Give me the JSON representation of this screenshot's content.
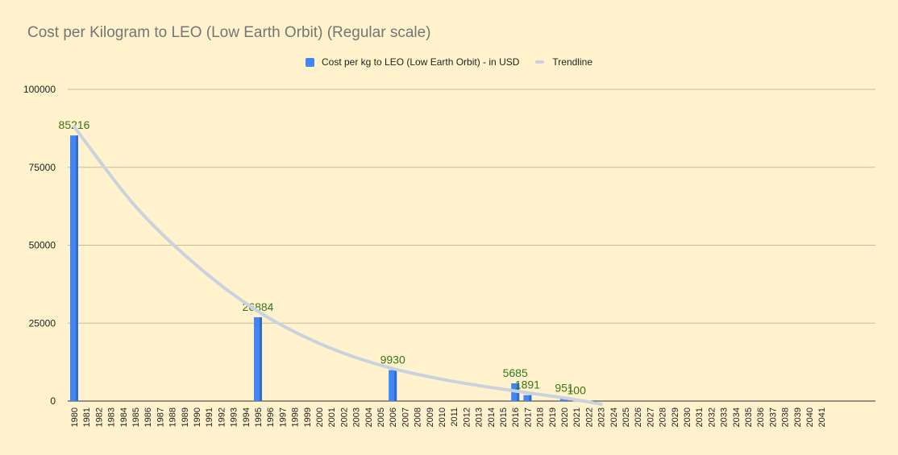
{
  "chart_data": {
    "type": "bar",
    "title": "Cost per Kilogram to LEO (Low Earth Orbit) (Regular scale)",
    "xlabel": "",
    "ylabel": "",
    "ylim": [
      0,
      100000
    ],
    "yticks": [
      0,
      25000,
      50000,
      75000,
      100000
    ],
    "categories": [
      "1980",
      "1981",
      "1982",
      "1983",
      "1984",
      "1985",
      "1986",
      "1987",
      "1988",
      "1989",
      "1990",
      "1991",
      "1992",
      "1993",
      "1994",
      "1995",
      "1996",
      "1997",
      "1998",
      "1999",
      "2000",
      "2001",
      "2002",
      "2003",
      "2004",
      "2005",
      "2006",
      "2007",
      "2008",
      "2009",
      "2010",
      "2011",
      "2012",
      "2013",
      "2014",
      "2015",
      "2016",
      "2017",
      "2018",
      "2019",
      "2020",
      "2021",
      "2022",
      "2023",
      "2024",
      "2025",
      "2026",
      "2027",
      "2028",
      "2029",
      "2030",
      "2031",
      "2032",
      "2033",
      "2034",
      "2035",
      "2036",
      "2037",
      "2038",
      "2039",
      "2040",
      "2041"
    ],
    "series": [
      {
        "name": "Cost per kg to LEO (Low Earth Orbit) - in USD",
        "color": "#4285F4",
        "points": [
          {
            "x": "1980",
            "y": 85216
          },
          {
            "x": "1995",
            "y": 26884
          },
          {
            "x": "2006",
            "y": 9930
          },
          {
            "x": "2016",
            "y": 5685
          },
          {
            "x": "2017",
            "y": 1891
          },
          {
            "x": "2020",
            "y": 951
          },
          {
            "x": "2021",
            "y": 100
          }
        ]
      }
    ],
    "trendline": {
      "name": "Trendline",
      "color": "#C9D3DF",
      "points": [
        {
          "x": "1980",
          "y": 88000
        },
        {
          "x": "1985",
          "y": 62500
        },
        {
          "x": "1990",
          "y": 43500
        },
        {
          "x": "1995",
          "y": 28800
        },
        {
          "x": "2000",
          "y": 18500
        },
        {
          "x": "2005",
          "y": 11500
        },
        {
          "x": "2010",
          "y": 7000
        },
        {
          "x": "2015",
          "y": 3800
        },
        {
          "x": "2020",
          "y": 1000
        },
        {
          "x": "2023",
          "y": -1000
        }
      ]
    },
    "data_label_color": "#38761D",
    "legend_position": "top-center",
    "grid": true
  }
}
